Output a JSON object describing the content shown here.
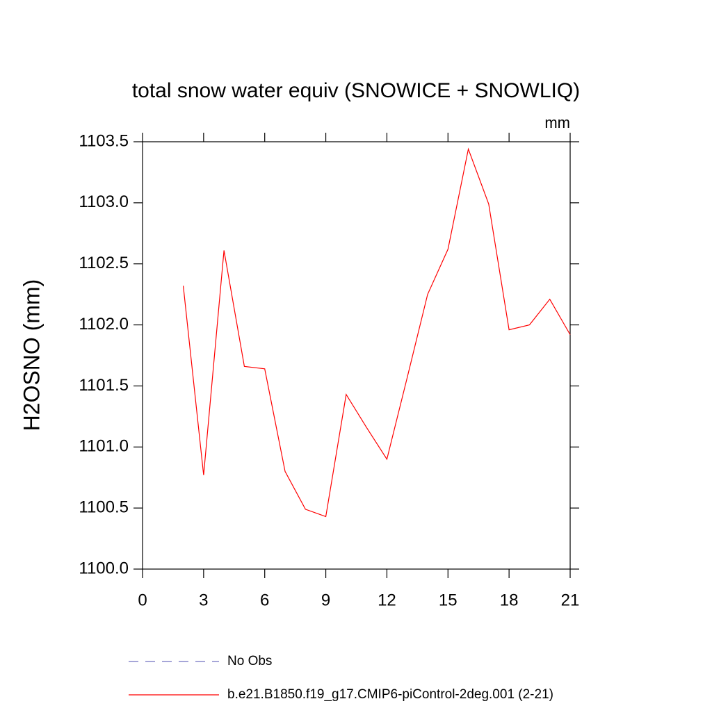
{
  "chart_data": {
    "type": "line",
    "title": "total snow water equiv (SNOWICE + SNOWLIQ)",
    "units": "mm",
    "y_label": "H2OSNO  (mm)",
    "x": [
      2,
      3,
      4,
      5,
      6,
      7,
      8,
      9,
      10,
      11,
      12,
      13,
      14,
      15,
      16,
      17,
      18,
      19,
      20,
      21
    ],
    "series": [
      {
        "name": "No Obs",
        "color": "#7070c0",
        "dashed": true,
        "values": [
          null,
          null,
          null,
          null,
          null,
          null,
          null,
          null,
          null,
          null,
          null,
          null,
          null,
          null,
          null,
          null,
          null,
          null,
          null,
          null
        ]
      },
      {
        "name": "b.e21.B1850.f19_g17.CMIP6-piControl-2deg.001 (2-21)",
        "color": "#ff0000",
        "dashed": false,
        "values": [
          1102.32,
          1100.77,
          1102.61,
          1101.66,
          1101.64,
          1100.8,
          1100.49,
          1100.43,
          1101.43,
          1101.16,
          1100.9,
          1101.57,
          1102.25,
          1102.62,
          1103.44,
          1102.99,
          1101.96,
          1102.0,
          1102.21,
          1101.92
        ]
      }
    ],
    "xlim": [
      0,
      21
    ],
    "xticks": [
      0,
      3,
      6,
      9,
      12,
      15,
      18,
      21
    ],
    "ylim": [
      1100,
      1103.5
    ],
    "yticks": [
      {
        "value": 1100,
        "label": "1100.0"
      },
      {
        "value": 1100.5,
        "label": "1100.5"
      },
      {
        "value": 1101,
        "label": "1101.0"
      },
      {
        "value": 1101.5,
        "label": "1101.5"
      },
      {
        "value": 1102,
        "label": "1102.0"
      },
      {
        "value": 1102.5,
        "label": "1102.5"
      },
      {
        "value": 1103,
        "label": "1103.0"
      },
      {
        "value": 1103.5,
        "label": "1103.5"
      }
    ]
  }
}
